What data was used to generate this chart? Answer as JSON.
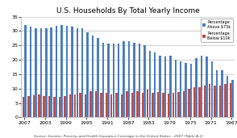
{
  "title": "U.S. Households By Total Yearly Income",
  "source": "Source: Income, Poverty, and Health Insurance Coverage in the United States - 2007 (Table A-1)",
  "years": [
    2007,
    2006,
    2005,
    2004,
    2003,
    2002,
    2001,
    2000,
    1999,
    1998,
    1997,
    1996,
    1995,
    1994,
    1993,
    1992,
    1991,
    1990,
    1989,
    1988,
    1987,
    1986,
    1985,
    1984,
    1983,
    1982,
    1981,
    1980,
    1979,
    1978,
    1977,
    1976,
    1975,
    1974,
    1973,
    1972,
    1971,
    1970,
    1969,
    1968,
    1967
  ],
  "above75k": [
    32.0,
    31.5,
    31.0,
    30.8,
    31.0,
    31.2,
    31.8,
    32.0,
    31.8,
    31.4,
    30.8,
    31.0,
    29.5,
    28.5,
    27.5,
    26.0,
    25.5,
    25.5,
    25.5,
    26.5,
    26.5,
    25.8,
    25.5,
    25.0,
    23.0,
    22.5,
    21.5,
    21.0,
    21.5,
    20.0,
    19.5,
    19.0,
    18.5,
    20.5,
    21.5,
    21.0,
    19.5,
    16.5,
    16.5,
    14.5,
    13.0
  ],
  "below10k": [
    7.0,
    7.5,
    7.8,
    8.0,
    7.5,
    7.3,
    7.0,
    7.0,
    7.5,
    8.0,
    8.0,
    8.5,
    8.0,
    9.0,
    9.0,
    8.5,
    8.5,
    8.0,
    8.5,
    8.0,
    9.0,
    8.5,
    9.0,
    8.5,
    9.5,
    8.5,
    8.8,
    8.5,
    8.2,
    8.5,
    8.8,
    9.0,
    10.0,
    10.5,
    10.5,
    11.0,
    11.5,
    11.0,
    11.0,
    11.5,
    12.0
  ],
  "bar_color_above": "#4F81BD",
  "bar_color_below": "#C0504D",
  "background_color": "#FFFFFF",
  "plot_bg_color": "#FFFFFF",
  "grid_color": "#C0C0C0",
  "ylim": [
    0,
    35
  ],
  "yticks": [
    0.0,
    5.0,
    10.0,
    15.0,
    20.0,
    25.0,
    30.0,
    35.0
  ],
  "xtick_step": 4,
  "legend_above_label": "Percentage\nAbove $75k",
  "legend_below_label": "Percentage\nBelow $10k",
  "title_fontsize": 6.5,
  "tick_fontsize": 4.5,
  "source_fontsize": 3.2
}
